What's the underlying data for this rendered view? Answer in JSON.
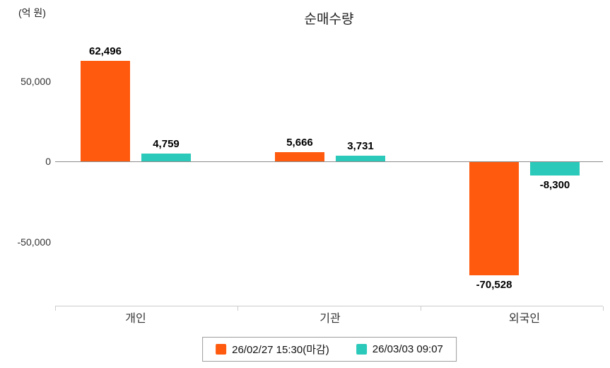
{
  "chart": {
    "title": "순매수량",
    "unit_label": "(억 원)"
  },
  "chart_data": {
    "type": "bar",
    "title": "순매수량",
    "ylabel": "(억 원)",
    "categories": [
      "개인",
      "기관",
      "외국인"
    ],
    "series": [
      {
        "name": "26/02/27 15:30(마감)",
        "color": "#ff5a0e",
        "values": [
          62496,
          5666,
          -70528
        ]
      },
      {
        "name": "26/03/03 09:07",
        "color": "#2bc9ba",
        "values": [
          4759,
          3731,
          -8300
        ]
      }
    ],
    "yticks": [
      50000,
      0,
      -50000
    ],
    "ylim": [
      -90000,
      76000
    ],
    "grid": false,
    "legend_position": "bottom-center",
    "value_labels": {
      "series_0": [
        "62,496",
        "5,666",
        "-70,528"
      ],
      "series_1": [
        "4,759",
        "3,731",
        "-8,300"
      ]
    }
  }
}
